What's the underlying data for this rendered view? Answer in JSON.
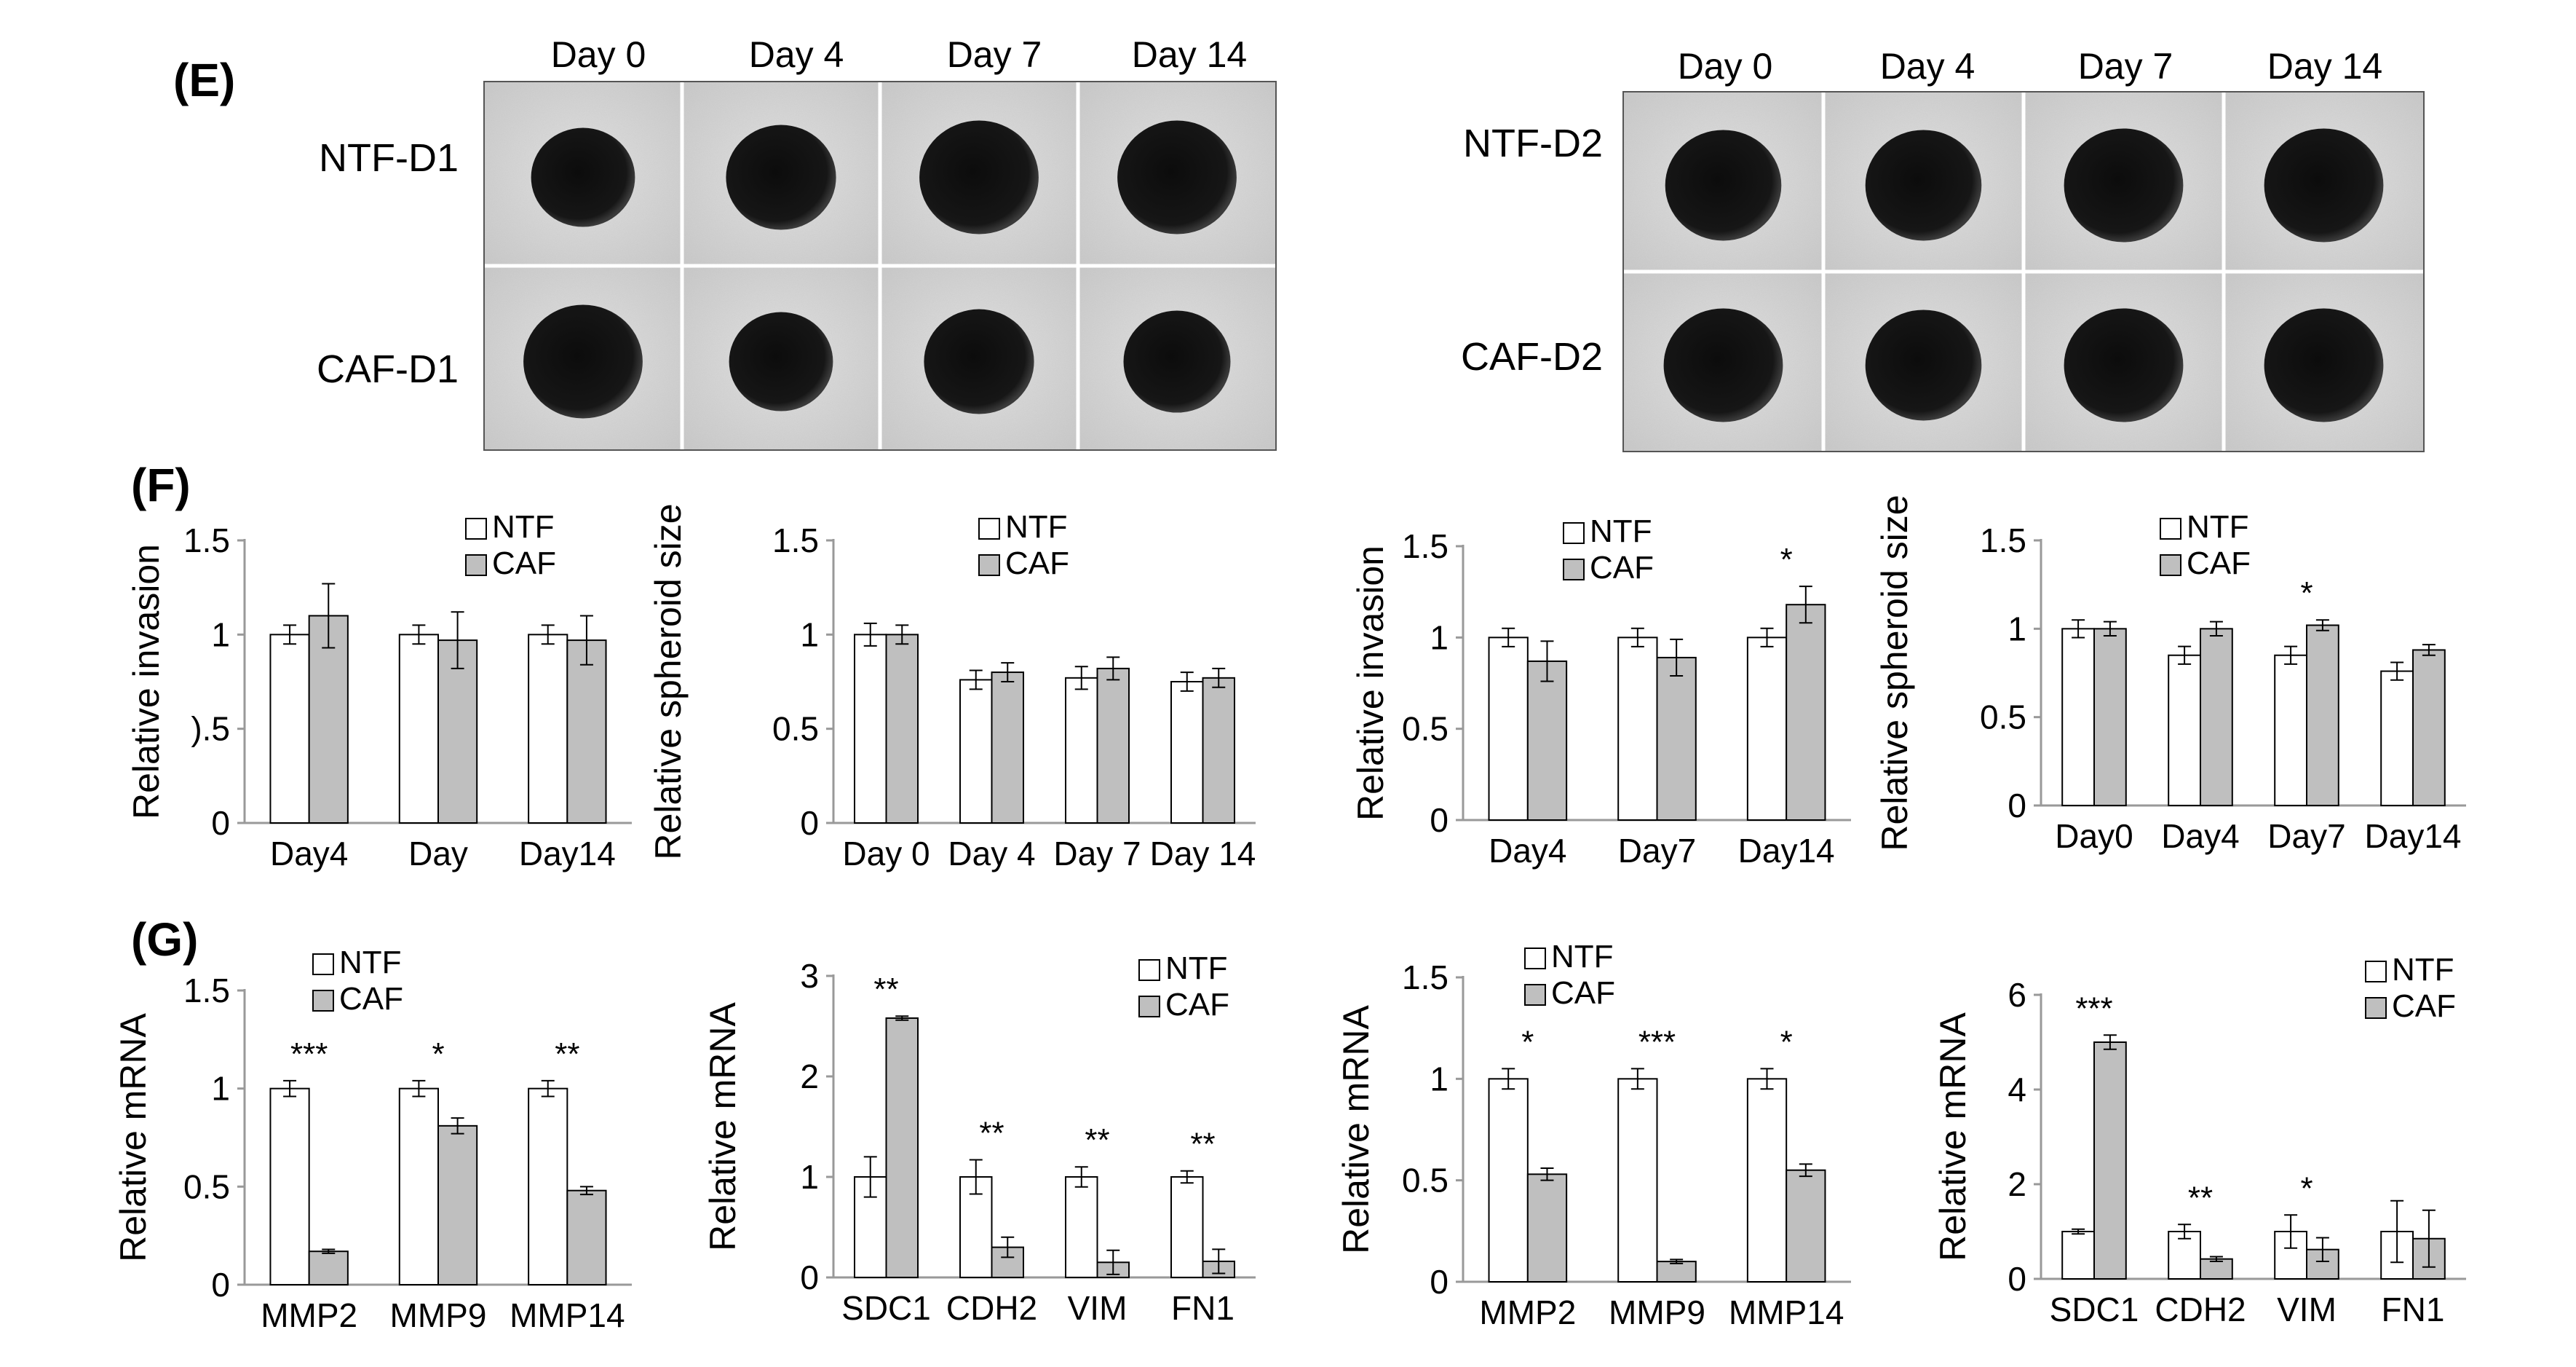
{
  "panels": {
    "E": "(E)",
    "F": "(F)",
    "G": "(G)"
  },
  "colors": {
    "ntf": "#ffffff",
    "caf": "#bfbfbf",
    "axis": "#999999",
    "outline": "#000000"
  },
  "panel_e": {
    "left": {
      "days": [
        "Day 0",
        "Day 4",
        "Day 7",
        "Day 14"
      ],
      "rows": [
        "NTF-D1",
        "CAF-D1"
      ]
    },
    "right": {
      "days": [
        "Day 0",
        "Day 4",
        "Day 7",
        "Day 14"
      ],
      "rows": [
        "NTF-D2",
        "CAF-D2"
      ]
    }
  },
  "chart_data": [
    {
      "type": "bar",
      "panel": "F",
      "ylabel": "Relative invasion",
      "categories": [
        "Day4",
        "Day",
        "Day14"
      ],
      "yticks": [
        "0",
        ").5",
        "1",
        "1.5"
      ],
      "ylim": [
        0,
        1.5
      ],
      "legend": [
        "NTF",
        "CAF"
      ],
      "legend_position": "top-center",
      "series": [
        {
          "name": "NTF",
          "values": [
            1.0,
            1.0,
            1.0
          ],
          "errors": [
            0.05,
            0.05,
            0.05
          ]
        },
        {
          "name": "CAF",
          "values": [
            1.1,
            0.97,
            0.97
          ],
          "errors": [
            0.17,
            0.15,
            0.13
          ]
        }
      ],
      "significance": [
        "",
        "",
        ""
      ]
    },
    {
      "type": "bar",
      "panel": "F",
      "ylabel": "Relative spheroid size",
      "categories": [
        "Day 0",
        "Day 4",
        "Day 7",
        "Day 14"
      ],
      "yticks": [
        "0",
        "0.5",
        "1",
        "1.5"
      ],
      "ylim": [
        0,
        1.5
      ],
      "legend": [
        "NTF",
        "CAF"
      ],
      "legend_position": "top-center",
      "series": [
        {
          "name": "NTF",
          "values": [
            1.0,
            0.76,
            0.77,
            0.75
          ],
          "errors": [
            0.06,
            0.05,
            0.06,
            0.05
          ]
        },
        {
          "name": "CAF",
          "values": [
            1.0,
            0.8,
            0.82,
            0.77
          ],
          "errors": [
            0.05,
            0.05,
            0.06,
            0.05
          ]
        }
      ],
      "significance": [
        "",
        "",
        "",
        ""
      ]
    },
    {
      "type": "bar",
      "panel": "F",
      "ylabel": "Relative invasion",
      "categories": [
        "Day4",
        "Day7",
        "Day14"
      ],
      "yticks": [
        "0",
        "0.5",
        "1",
        "1.5"
      ],
      "ylim": [
        0,
        1.5
      ],
      "legend": [
        "NTF",
        "CAF"
      ],
      "legend_position": "top-center",
      "series": [
        {
          "name": "NTF",
          "values": [
            1.0,
            1.0,
            1.0
          ],
          "errors": [
            0.05,
            0.05,
            0.05
          ]
        },
        {
          "name": "CAF",
          "values": [
            0.87,
            0.89,
            1.18
          ],
          "errors": [
            0.11,
            0.1,
            0.1
          ]
        }
      ],
      "significance": [
        "",
        "",
        "*"
      ]
    },
    {
      "type": "bar",
      "panel": "F",
      "ylabel": "Relative spheroid size",
      "categories": [
        "Day0",
        "Day4",
        "Day7",
        "Day14"
      ],
      "yticks": [
        "0",
        "0.5",
        "1",
        "1.5"
      ],
      "ylim": [
        0,
        1.5
      ],
      "legend": [
        "NTF",
        "CAF"
      ],
      "legend_position": "top-center",
      "series": [
        {
          "name": "NTF",
          "values": [
            1.0,
            0.85,
            0.85,
            0.76
          ],
          "errors": [
            0.05,
            0.05,
            0.05,
            0.05
          ]
        },
        {
          "name": "CAF",
          "values": [
            1.0,
            1.0,
            1.02,
            0.88
          ],
          "errors": [
            0.04,
            0.04,
            0.03,
            0.03
          ]
        }
      ],
      "significance": [
        "",
        "",
        "*",
        ""
      ]
    },
    {
      "type": "bar",
      "panel": "G",
      "ylabel": "Relative mRNA",
      "categories": [
        "MMP2",
        "MMP9",
        "MMP14"
      ],
      "yticks": [
        "0",
        "0.5",
        "1",
        "1.5"
      ],
      "ylim": [
        0,
        1.5
      ],
      "legend": [
        "NTF",
        "CAF"
      ],
      "legend_position": "top-left",
      "series": [
        {
          "name": "NTF",
          "values": [
            1.0,
            1.0,
            1.0
          ],
          "errors": [
            0.04,
            0.04,
            0.04
          ]
        },
        {
          "name": "CAF",
          "values": [
            0.17,
            0.81,
            0.48
          ],
          "errors": [
            0.01,
            0.04,
            0.02
          ]
        }
      ],
      "significance": [
        "***",
        "*",
        "**"
      ]
    },
    {
      "type": "bar",
      "panel": "G",
      "ylabel": "Relative mRNA",
      "categories": [
        "SDC1",
        "CDH2",
        "VIM",
        "FN1"
      ],
      "yticks": [
        "0",
        "1",
        "2",
        "3"
      ],
      "ylim": [
        0,
        3
      ],
      "legend": [
        "NTF",
        "CAF"
      ],
      "legend_position": "top-right",
      "series": [
        {
          "name": "NTF",
          "values": [
            1.0,
            1.0,
            1.0,
            1.0
          ],
          "errors": [
            0.2,
            0.17,
            0.1,
            0.06
          ]
        },
        {
          "name": "CAF",
          "values": [
            2.58,
            0.3,
            0.15,
            0.16
          ],
          "errors": [
            0.02,
            0.1,
            0.12,
            0.12
          ]
        }
      ],
      "significance": [
        "**",
        "**",
        "**",
        "**"
      ]
    },
    {
      "type": "bar",
      "panel": "G",
      "ylabel": "Relative mRNA",
      "categories": [
        "MMP2",
        "MMP9",
        "MMP14"
      ],
      "yticks": [
        "0",
        "0.5",
        "1",
        "1.5"
      ],
      "ylim": [
        0,
        1.5
      ],
      "legend": [
        "NTF",
        "CAF"
      ],
      "legend_position": "top-left",
      "series": [
        {
          "name": "NTF",
          "values": [
            1.0,
            1.0,
            1.0
          ],
          "errors": [
            0.05,
            0.05,
            0.05
          ]
        },
        {
          "name": "CAF",
          "values": [
            0.53,
            0.1,
            0.55
          ],
          "errors": [
            0.03,
            0.01,
            0.03
          ]
        }
      ],
      "significance": [
        "*",
        "***",
        "*"
      ]
    },
    {
      "type": "bar",
      "panel": "G",
      "ylabel": "Relative mRNA",
      "categories": [
        "SDC1",
        "CDH2",
        "VIM",
        "FN1"
      ],
      "yticks": [
        "0",
        "2",
        "4",
        "6"
      ],
      "ylim": [
        0,
        6
      ],
      "legend": [
        "NTF",
        "CAF"
      ],
      "legend_position": "top-right",
      "series": [
        {
          "name": "NTF",
          "values": [
            1.0,
            1.0,
            1.0,
            1.0
          ],
          "errors": [
            0.05,
            0.15,
            0.35,
            0.65
          ]
        },
        {
          "name": "CAF",
          "values": [
            5.0,
            0.42,
            0.62,
            0.85
          ],
          "errors": [
            0.15,
            0.05,
            0.25,
            0.6
          ]
        }
      ],
      "significance": [
        "***",
        "**",
        "*",
        ""
      ]
    }
  ]
}
